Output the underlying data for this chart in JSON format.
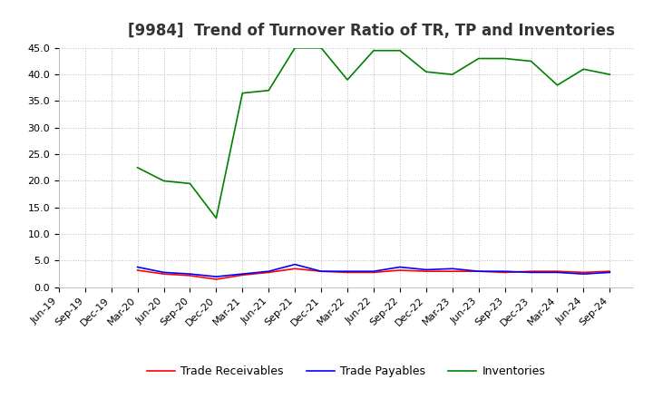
{
  "title": "[9984]  Trend of Turnover Ratio of TR, TP and Inventories",
  "ylim": [
    0.0,
    45.0
  ],
  "yticks": [
    0.0,
    5.0,
    10.0,
    15.0,
    20.0,
    25.0,
    30.0,
    35.0,
    40.0,
    45.0
  ],
  "legend": [
    "Trade Receivables",
    "Trade Payables",
    "Inventories"
  ],
  "dates": [
    "Jun-19",
    "Sep-19",
    "Dec-19",
    "Mar-20",
    "Jun-20",
    "Sep-20",
    "Dec-20",
    "Mar-21",
    "Jun-21",
    "Sep-21",
    "Dec-21",
    "Mar-22",
    "Jun-22",
    "Sep-22",
    "Dec-22",
    "Mar-23",
    "Jun-23",
    "Sep-23",
    "Dec-23",
    "Mar-24",
    "Jun-24",
    "Sep-24"
  ],
  "trade_receivables": [
    null,
    null,
    null,
    3.2,
    2.5,
    2.2,
    1.5,
    2.3,
    2.8,
    3.5,
    3.0,
    2.8,
    2.8,
    3.2,
    3.0,
    3.0,
    3.0,
    2.8,
    3.0,
    3.0,
    2.8,
    3.0
  ],
  "trade_payables": [
    null,
    null,
    null,
    3.8,
    2.8,
    2.5,
    2.0,
    2.5,
    3.0,
    4.3,
    3.0,
    3.0,
    3.0,
    3.8,
    3.3,
    3.5,
    3.0,
    3.0,
    2.8,
    2.8,
    2.5,
    2.8
  ],
  "inventories": [
    null,
    null,
    null,
    22.5,
    20.0,
    19.5,
    13.0,
    36.5,
    37.0,
    45.0,
    45.0,
    39.0,
    44.5,
    44.5,
    40.5,
    40.0,
    43.0,
    43.0,
    42.5,
    38.0,
    41.0,
    40.0
  ],
  "tr_color": "#ff0000",
  "tp_color": "#0000ff",
  "inv_color": "#008000",
  "grid_color": "#aaaaaa",
  "bg_color": "#ffffff",
  "title_fontsize": 12,
  "tick_fontsize": 8
}
